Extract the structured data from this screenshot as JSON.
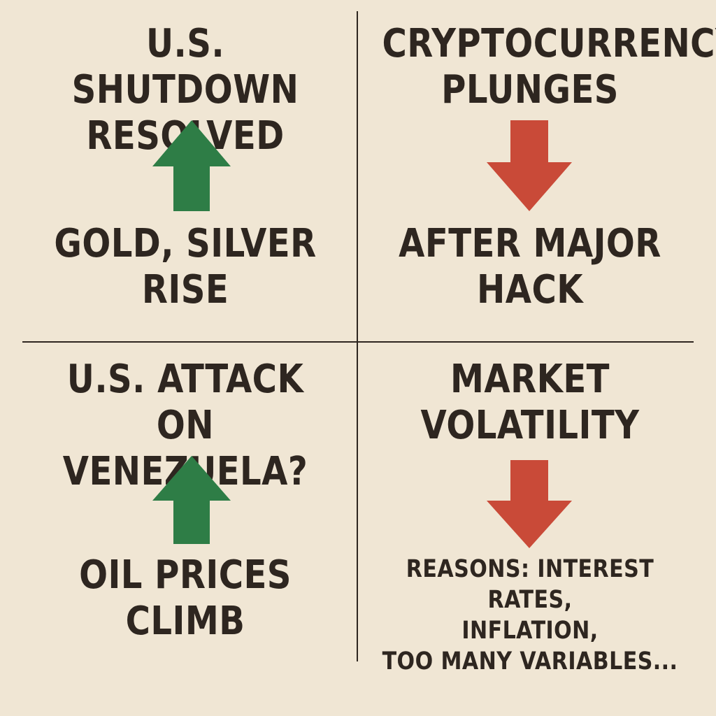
{
  "panels": {
    "top_left": {
      "headline": "U.S. SHUTDOWN\nRESOLVED",
      "direction": "up",
      "arrow_color": "#2e7d46",
      "outcome": "GOLD, SILVER\nRISE"
    },
    "top_right": {
      "headline": "CRYPTOCURRENCY\nPLUNGES",
      "direction": "down",
      "arrow_color": "#c94a38",
      "outcome": "AFTER MAJOR\nHACK"
    },
    "bottom_left": {
      "headline": "U.S. ATTACK ON\nVENEZUELA?",
      "direction": "up",
      "arrow_color": "#2e7d46",
      "outcome": "OIL PRICES\nCLIMB"
    },
    "bottom_right": {
      "headline": "MARKET\nVOLATILITY",
      "direction": "down",
      "arrow_color": "#c94a38",
      "outcome": "REASONS: INTEREST RATES,\nINFLATION,\nTOO MANY VARIABLES..."
    }
  },
  "colors": {
    "background": "#f0e6d4",
    "text": "#2e2620",
    "up": "#2e7d46",
    "down": "#c94a38"
  }
}
